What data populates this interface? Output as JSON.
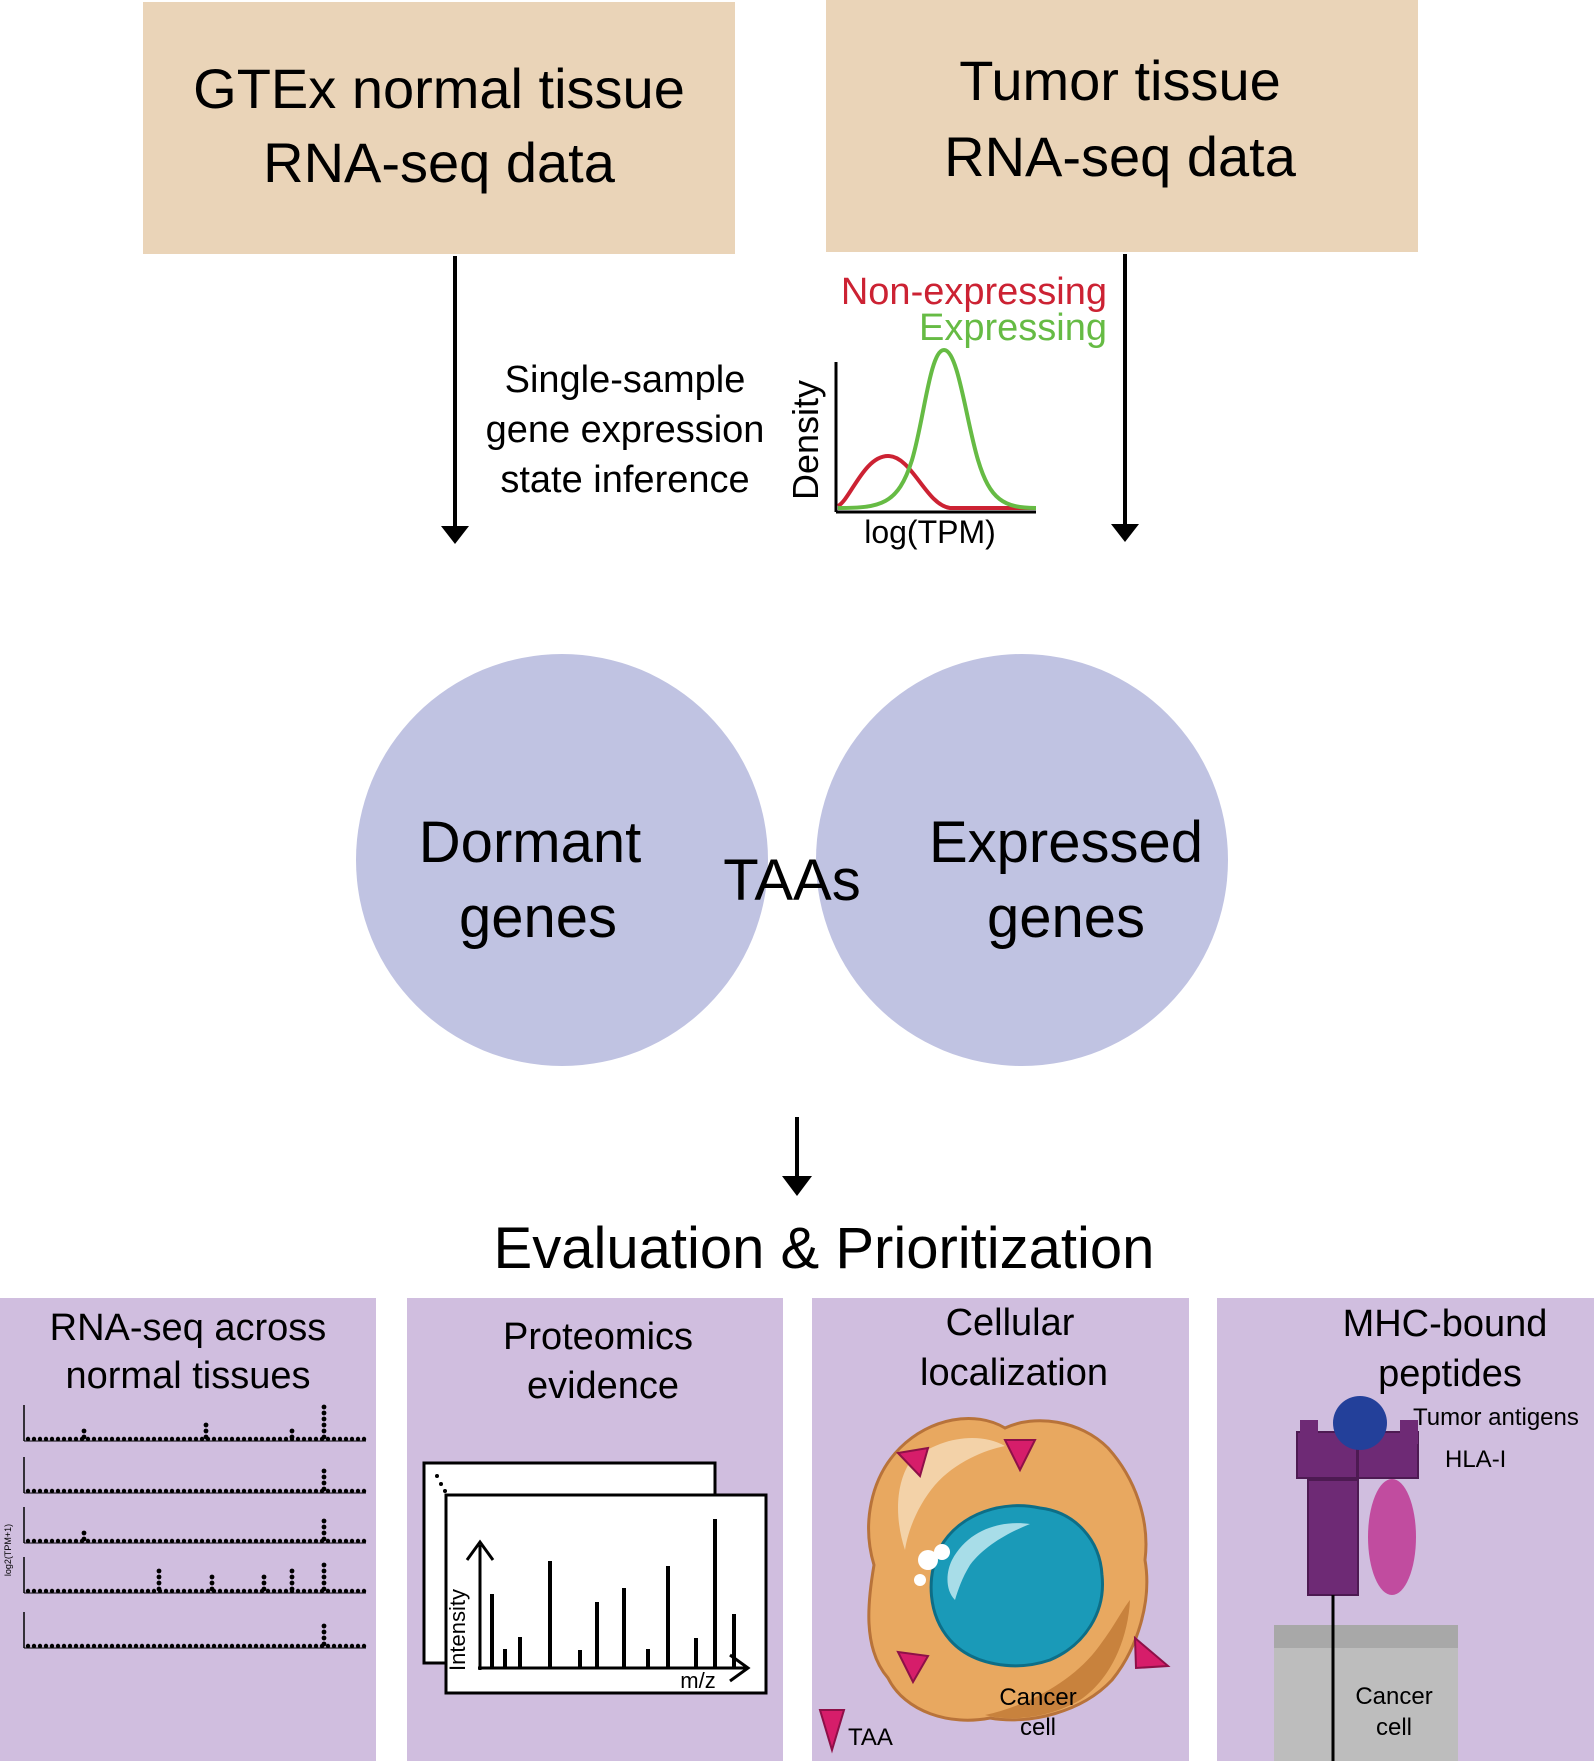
{
  "colors": {
    "source_box": "#ead4b8",
    "circle": "#c0c3e2",
    "overlap": "#a490c6",
    "panel": "#d0bedf",
    "non_expressing": "#cc2233",
    "expressing": "#66bb44",
    "cytoplasm": "#e8a860",
    "nucleus": "#1a9ab8",
    "taa_marker": "#d61d6a",
    "hla_purple": "#6e2a75",
    "antigen_blue": "#23409a",
    "cd8_pink": "#c14c9f",
    "membrane_gray": "#bdbdbd"
  },
  "sources": {
    "left": {
      "line1": "GTEx normal tissue",
      "line2": "RNA-seq data"
    },
    "right": {
      "line1": "Tumor tissue",
      "line2": "RNA-seq data"
    }
  },
  "inference": {
    "line1": "Single-sample",
    "line2": "gene expression",
    "line3": "state inference"
  },
  "density_plot": {
    "legend_non_expressing": "Non-expressing",
    "legend_expressing": "Expressing",
    "ylabel": "Density",
    "xlabel": "log(TPM)"
  },
  "venn": {
    "left": {
      "line1": "Dormant",
      "line2": "genes"
    },
    "overlap": "TAAs",
    "right": {
      "line1": "Expressed",
      "line2": "genes"
    }
  },
  "evaluation_title": "Evaluation & Prioritization",
  "panels": {
    "rnaseq": {
      "line1": "RNA-seq across",
      "line2": "normal tissues",
      "axis_label": "log2(TPM+1)"
    },
    "proteomics": {
      "line1": "Proteomics",
      "line2": "evidence",
      "ylabel": "Intensity",
      "xlabel": "m/z"
    },
    "localization": {
      "line1": "Cellular",
      "line2": "localization",
      "cell_line1": "Cancer",
      "cell_line2": "cell",
      "legend": "TAA"
    },
    "mhc": {
      "line1": "MHC-bound",
      "line2": "peptides",
      "antigens": "Tumor antigens",
      "hla": "HLA-I",
      "cell_line1": "Cancer",
      "cell_line2": "cell"
    }
  }
}
